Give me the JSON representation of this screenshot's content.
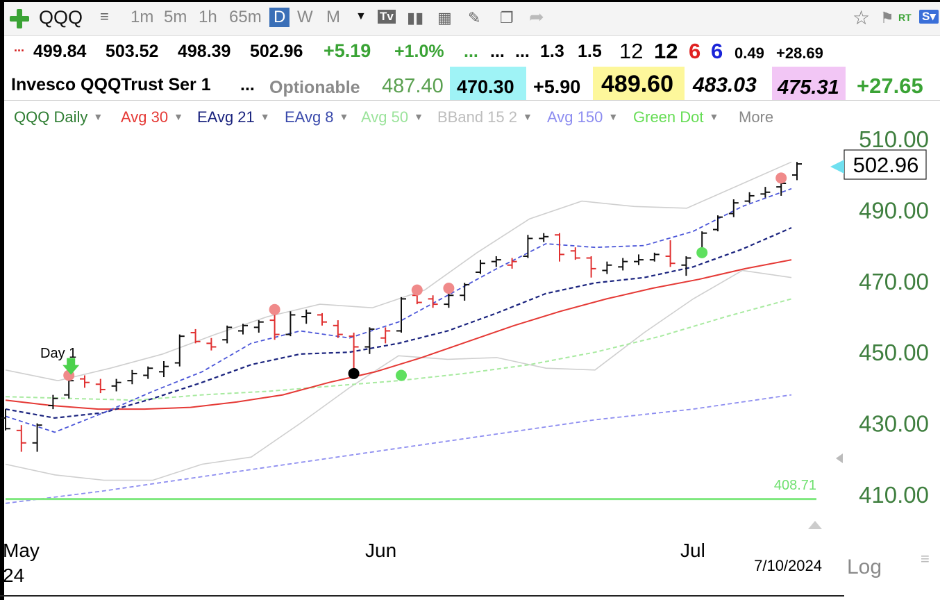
{
  "toolbar": {
    "symbol": "QQQ",
    "intervals": [
      "1m",
      "5m",
      "1h",
      "65m"
    ],
    "periods": [
      "D",
      "W",
      "M"
    ],
    "active_period": "D",
    "rt_label": "RT",
    "icons": [
      "add-icon",
      "list-icon",
      "dropdown-icon",
      "tv-icon",
      "bar-chart-icon",
      "calculator-icon",
      "pencil-icon",
      "copy-icon",
      "share-icon",
      "star-icon",
      "flag-icon",
      "s-icon"
    ]
  },
  "quote_row1": {
    "dots": "...",
    "open": "499.84",
    "high": "503.52",
    "low": "498.39",
    "close": "502.96",
    "change": "+5.19",
    "change_pct": "+1.0%",
    "e1": "...",
    "e2": "...",
    "e3": "...",
    "v1": "1.3",
    "v2": "1.5",
    "n1": "12",
    "n2": "12",
    "n3": "6",
    "n4": "6",
    "v3": "0.49",
    "v4": "+28.69"
  },
  "quote_row2": {
    "name": "Invesco QQQTrust Ser 1",
    "dots": "...",
    "optionable": "Optionable",
    "p1": "487.40",
    "p2": "470.30",
    "p3": "+5.90",
    "p4": "489.60",
    "p5": "483.03",
    "p6": "475.31",
    "p7": "+27.65"
  },
  "studies": [
    {
      "label": "QQQ Daily",
      "color": "#2e7d32"
    },
    {
      "label": "Avg 30",
      "color": "#e53935"
    },
    {
      "label": "EAvg 21",
      "color": "#1a237e"
    },
    {
      "label": "EAvg 8",
      "color": "#3949ab"
    },
    {
      "label": "Avg 50",
      "color": "#9be39b"
    },
    {
      "label": "BBand 15 2",
      "color": "#bdbdbd"
    },
    {
      "label": "Avg 150",
      "color": "#8c8cf0"
    },
    {
      "label": "Green Dot",
      "color": "#66dd55"
    }
  ],
  "more_label": "More",
  "chart_data": {
    "type": "ohlc",
    "y_ticks": [
      "510.00",
      "490.00",
      "470.00",
      "450.00",
      "430.00",
      "410.00"
    ],
    "x_labels": [
      "May",
      "Jun",
      "Jul"
    ],
    "year_label": "24",
    "date_label": "7/10/2024",
    "last_price": "502.96",
    "level_line": {
      "label": "408.71",
      "value": 408.71
    },
    "scale_label": "Log",
    "annotation": "Day 1",
    "bars": [
      {
        "o": 431.5,
        "h": 434.0,
        "l": 428.0,
        "c": 428.5
      },
      {
        "o": 428.0,
        "h": 429.5,
        "l": 422.0,
        "c": 424.5
      },
      {
        "o": 424.5,
        "h": 430.0,
        "l": 422.0,
        "c": 429.5
      },
      {
        "o": 435.0,
        "h": 438.0,
        "l": 434.0,
        "c": 437.0
      },
      {
        "o": 438.0,
        "h": 442.5,
        "l": 437.0,
        "c": 442.0
      },
      {
        "o": 442.5,
        "h": 443.5,
        "l": 440.0,
        "c": 441.5
      },
      {
        "o": 441.0,
        "h": 442.5,
        "l": 438.5,
        "c": 439.5
      },
      {
        "o": 440.5,
        "h": 442.5,
        "l": 439.0,
        "c": 441.5
      },
      {
        "o": 442.0,
        "h": 445.0,
        "l": 441.0,
        "c": 444.0
      },
      {
        "o": 443.5,
        "h": 446.0,
        "l": 442.5,
        "c": 445.5
      },
      {
        "o": 444.5,
        "h": 447.5,
        "l": 443.0,
        "c": 446.0
      },
      {
        "o": 447.0,
        "h": 455.0,
        "l": 446.0,
        "c": 454.5
      },
      {
        "o": 455.5,
        "h": 456.5,
        "l": 452.5,
        "c": 453.0
      },
      {
        "o": 452.5,
        "h": 454.0,
        "l": 450.5,
        "c": 451.5
      },
      {
        "o": 453.5,
        "h": 457.5,
        "l": 452.5,
        "c": 457.0
      },
      {
        "o": 456.0,
        "h": 458.0,
        "l": 455.0,
        "c": 457.5
      },
      {
        "o": 457.0,
        "h": 459.0,
        "l": 455.5,
        "c": 458.5
      },
      {
        "o": 459.0,
        "h": 461.0,
        "l": 453.5,
        "c": 455.0
      },
      {
        "o": 455.0,
        "h": 461.5,
        "l": 454.5,
        "c": 460.5
      },
      {
        "o": 460.0,
        "h": 462.0,
        "l": 458.0,
        "c": 461.0
      },
      {
        "o": 460.5,
        "h": 461.0,
        "l": 457.5,
        "c": 458.5
      },
      {
        "o": 457.5,
        "h": 459.0,
        "l": 454.0,
        "c": 455.0
      },
      {
        "o": 454.5,
        "h": 455.5,
        "l": 443.5,
        "c": 451.5
      },
      {
        "o": 451.5,
        "h": 457.0,
        "l": 449.5,
        "c": 456.5
      },
      {
        "o": 454.0,
        "h": 457.0,
        "l": 452.5,
        "c": 456.0
      },
      {
        "o": 456.0,
        "h": 465.5,
        "l": 455.5,
        "c": 465.0
      },
      {
        "o": 466.0,
        "h": 467.0,
        "l": 463.5,
        "c": 464.0
      },
      {
        "o": 465.0,
        "h": 466.0,
        "l": 462.5,
        "c": 463.5
      },
      {
        "o": 463.5,
        "h": 467.0,
        "l": 462.5,
        "c": 466.0
      },
      {
        "o": 466.0,
        "h": 469.5,
        "l": 464.5,
        "c": 469.0
      },
      {
        "o": 472.5,
        "h": 476.0,
        "l": 472.0,
        "c": 475.0
      },
      {
        "o": 475.5,
        "h": 477.0,
        "l": 474.0,
        "c": 476.0
      },
      {
        "o": 474.5,
        "h": 476.5,
        "l": 473.5,
        "c": 475.5
      },
      {
        "o": 477.0,
        "h": 483.0,
        "l": 476.5,
        "c": 482.0
      },
      {
        "o": 482.0,
        "h": 483.5,
        "l": 481.0,
        "c": 482.5
      },
      {
        "o": 483.0,
        "h": 483.5,
        "l": 475.5,
        "c": 477.5
      },
      {
        "o": 478.5,
        "h": 479.5,
        "l": 476.0,
        "c": 476.5
      },
      {
        "o": 476.5,
        "h": 477.0,
        "l": 471.0,
        "c": 473.5
      },
      {
        "o": 473.0,
        "h": 475.5,
        "l": 472.0,
        "c": 474.5
      },
      {
        "o": 474.0,
        "h": 476.5,
        "l": 473.0,
        "c": 475.5
      },
      {
        "o": 475.5,
        "h": 477.5,
        "l": 474.5,
        "c": 476.0
      },
      {
        "o": 476.0,
        "h": 478.0,
        "l": 475.5,
        "c": 477.5
      },
      {
        "o": 477.0,
        "h": 481.5,
        "l": 474.0,
        "c": 475.0
      },
      {
        "o": 474.5,
        "h": 477.0,
        "l": 471.5,
        "c": 476.5
      },
      {
        "o": 478.0,
        "h": 484.0,
        "l": 477.5,
        "c": 483.5
      },
      {
        "o": 484.5,
        "h": 488.5,
        "l": 484.0,
        "c": 488.0
      },
      {
        "o": 489.0,
        "h": 493.0,
        "l": 488.0,
        "c": 492.0
      },
      {
        "o": 492.5,
        "h": 495.0,
        "l": 492.0,
        "c": 494.0
      },
      {
        "o": 494.5,
        "h": 496.5,
        "l": 493.5,
        "c": 495.0
      },
      {
        "o": 496.5,
        "h": 498.5,
        "l": 494.0,
        "c": 497.5
      },
      {
        "o": 499.84,
        "h": 503.52,
        "l": 498.39,
        "c": 502.96
      }
    ],
    "pink_dots": [
      {
        "i": 4,
        "v": 443.5
      },
      {
        "i": 17,
        "v": 462.0
      },
      {
        "i": 26,
        "v": 467.5
      },
      {
        "i": 28,
        "v": 468.0
      },
      {
        "i": 49,
        "v": 499.0
      }
    ],
    "green_dots": [
      {
        "i": 25,
        "v": 443.5
      },
      {
        "i": 44,
        "v": 478.0
      }
    ],
    "black_dots": [
      {
        "i": 22,
        "v": 444.0
      }
    ],
    "green_arrows": [
      {
        "i": 4,
        "v": 446.0
      }
    ],
    "lines": {
      "avg30": [
        436.5,
        435.0,
        434.0,
        434.0,
        434.5,
        436.0,
        438.0,
        441.5,
        444.5,
        448.5,
        453.0,
        457.5,
        461.5,
        465.0,
        468.0,
        470.5,
        473.5,
        476.0
      ],
      "eavg21": [
        434.0,
        431.5,
        433.0,
        437.0,
        441.5,
        446.5,
        449.5,
        450.0,
        452.5,
        456.0,
        461.0,
        466.5,
        469.5,
        471.0,
        474.0,
        479.0,
        485.0
      ],
      "eavg8": [
        432.0,
        427.5,
        433.0,
        439.0,
        444.5,
        452.5,
        456.0,
        454.0,
        458.5,
        466.0,
        473.5,
        480.5,
        479.5,
        480.0,
        484.0,
        491.0,
        496.0
      ],
      "avg50": [
        437.5,
        437.0,
        436.5,
        438.0,
        439.0,
        440.5,
        442.0,
        444.0,
        446.5,
        450.0,
        454.5,
        460.0,
        465.0
      ],
      "avg150": [
        407.5,
        411.0,
        415.0,
        419.0,
        423.0,
        427.0,
        431.0,
        434.0,
        438.0
      ],
      "bband_upper": [
        445.0,
        442.0,
        445.5,
        449.5,
        455.0,
        460.0,
        463.5,
        462.5,
        467.5,
        478.0,
        487.5,
        492.5,
        491.0,
        490.5,
        497.0,
        503.5
      ],
      "bband_lower": [
        418.5,
        415.5,
        414.0,
        414.0,
        418.5,
        420.5,
        430.0,
        440.0,
        449.0,
        448.0,
        448.5,
        445.5,
        445.0,
        455.5,
        465.0,
        473.0,
        471.0
      ]
    }
  }
}
